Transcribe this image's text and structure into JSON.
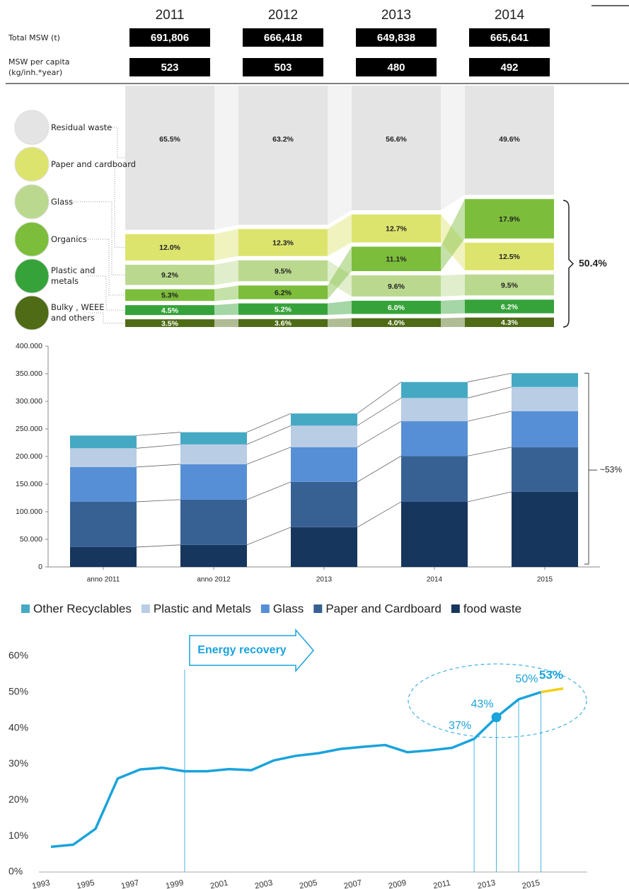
{
  "chart_data": [
    {
      "type": "stacked_flow",
      "categories": [
        "2011",
        "2012",
        "2013",
        "2014"
      ],
      "rows": [
        {
          "label": "Total MSW (t)",
          "values": [
            691806,
            666418,
            649838,
            665641
          ],
          "value_labels": [
            "691,806",
            "666,418",
            "649,838",
            "665,641"
          ]
        },
        {
          "label": "MSW per capita\n(kg/inh.*year)",
          "values": [
            523,
            503,
            480,
            492
          ]
        }
      ],
      "series": [
        {
          "name": "Residual waste",
          "color": "#e4e4e4",
          "values": [
            65.5,
            63.2,
            56.6,
            49.6
          ],
          "value_labels": [
            "65.5%",
            "63.2%",
            "56.6%",
            "49.6%"
          ]
        },
        {
          "name": "Paper and cardboard",
          "color": "#dde46e",
          "values": [
            12.0,
            12.3,
            12.7,
            12.5
          ],
          "value_labels": [
            "12.0%",
            "12.3%",
            "12.7%",
            "12.5%"
          ]
        },
        {
          "name": "Glass",
          "color": "#bad98f",
          "values": [
            9.2,
            9.5,
            9.6,
            9.5
          ],
          "value_labels": [
            "9.2%",
            "9.5%",
            "9.6%",
            "9.5%"
          ]
        },
        {
          "name": "Organics",
          "color": "#7cbd3b",
          "values": [
            5.3,
            6.2,
            11.1,
            17.9
          ],
          "value_labels": [
            "5.3%",
            "6.2%",
            "11.1%",
            "17.9%"
          ]
        },
        {
          "name": "Plastic and\nmetals",
          "color": "#36a33a",
          "values": [
            4.5,
            5.2,
            6.0,
            6.2
          ],
          "value_labels": [
            "4.5%",
            "5.2%",
            "6.0%",
            "6.2%"
          ]
        },
        {
          "name": "Bulky , WEEE\nand others",
          "color": "#4f6b16",
          "values": [
            3.5,
            3.6,
            4.0,
            4.3
          ],
          "value_labels": [
            "3.5%",
            "3.6%",
            "4.0%",
            "4.3%"
          ]
        }
      ],
      "annotation": "50.4%"
    },
    {
      "type": "stacked_bar",
      "categories": [
        "anno 2011",
        "anno 2012",
        "2013",
        "2014",
        "2015"
      ],
      "series": [
        {
          "name": "Other Recyclables",
          "color": "#45a9c4",
          "values": [
            23000,
            22000,
            22000,
            29000,
            25000
          ]
        },
        {
          "name": "Plastic and Metals",
          "color": "#b9cde5",
          "values": [
            34000,
            36000,
            39000,
            42000,
            44000
          ]
        },
        {
          "name": "Glass",
          "color": "#568fd5",
          "values": [
            63000,
            64000,
            63000,
            63000,
            65000
          ]
        },
        {
          "name": "Paper and Cardboard",
          "color": "#376193",
          "values": [
            82000,
            82000,
            82000,
            83000,
            81000
          ]
        },
        {
          "name": "food waste",
          "color": "#17365d",
          "values": [
            36000,
            40000,
            72000,
            118000,
            136000
          ]
        }
      ],
      "ylim": [
        0,
        400000
      ],
      "yticks": [
        0,
        {
          "value": 50000,
          "label": "50.000"
        },
        {
          "value": 100000,
          "label": "100.000"
        },
        {
          "value": 150000,
          "label": "150.000"
        },
        {
          "value": 200000,
          "label": "200.000"
        },
        {
          "value": 250000,
          "label": "250.000"
        },
        {
          "value": 300000,
          "label": "300.000"
        },
        {
          "value": 350000,
          "label": "350.000"
        },
        {
          "value": 400000,
          "label": "400.000"
        }
      ],
      "annotation": "~53%"
    },
    {
      "type": "line",
      "x": [
        1993,
        1994,
        1995,
        1996,
        1997,
        1998,
        1999,
        2000,
        2001,
        2002,
        2003,
        2004,
        2005,
        2006,
        2007,
        2008,
        2009,
        2010,
        2011,
        2012,
        2013,
        2014,
        2015,
        2016
      ],
      "series": [
        {
          "color": "#1aa3dc",
          "values": [
            7,
            7.6,
            12,
            26,
            28.5,
            29,
            28,
            28,
            28.6,
            28.3,
            31,
            32.3,
            33,
            34.2,
            34.8,
            35.3,
            33.3,
            33.8,
            34.5,
            37,
            43,
            48,
            50,
            null
          ],
          "value_labels": [
            null,
            null,
            null,
            null,
            null,
            null,
            null,
            null,
            null,
            null,
            null,
            null,
            null,
            null,
            null,
            null,
            null,
            null,
            null,
            "37%",
            "43%",
            null,
            "50%",
            null
          ]
        },
        {
          "color": "#f5cf12",
          "values": [
            null,
            null,
            null,
            null,
            null,
            null,
            null,
            null,
            null,
            null,
            null,
            null,
            null,
            null,
            null,
            null,
            null,
            null,
            null,
            null,
            null,
            null,
            50,
            51
          ]
        }
      ],
      "xlim": [
        1993,
        2016
      ],
      "xticks": [
        1993,
        1995,
        1997,
        1999,
        2001,
        2003,
        2005,
        2007,
        2009,
        2011,
        2013,
        2015
      ],
      "ylim": [
        0,
        60
      ],
      "yticks": [
        {
          "value": 0,
          "label": "0%"
        },
        {
          "value": 10,
          "label": "10%"
        },
        {
          "value": 20,
          "label": "20%"
        },
        {
          "value": 30,
          "label": "30%"
        },
        {
          "value": 40,
          "label": "40%"
        },
        {
          "value": 50,
          "label": "50%"
        },
        {
          "value": 60,
          "label": "60%"
        }
      ],
      "vlines": [
        2012,
        2013,
        2014,
        2015
      ],
      "markers": [
        2013
      ],
      "annotations": [
        "Energy recovery",
        "53%"
      ]
    }
  ]
}
